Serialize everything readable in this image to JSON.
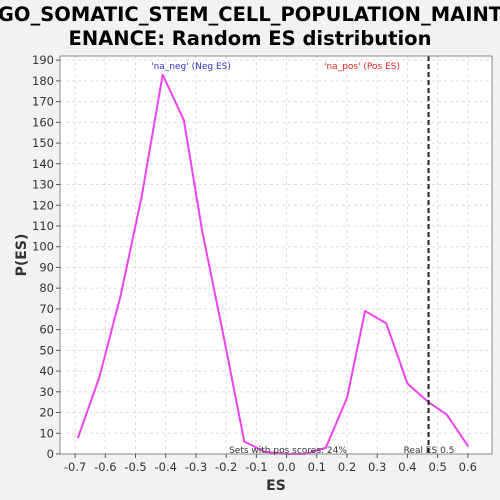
{
  "chart_data": {
    "type": "line",
    "title_lines": [
      "GO_SOMATIC_STEM_CELL_POPULATION_MAINT",
      "ENANCE: Random ES distribution"
    ],
    "xlabel": "ES",
    "ylabel": "P(ES)",
    "xlim": [
      -0.75,
      0.68
    ],
    "ylim": [
      0,
      192
    ],
    "x_ticks": [
      -0.7,
      -0.6,
      -0.5,
      -0.4,
      -0.3,
      -0.2,
      -0.1,
      0.0,
      0.1,
      0.2,
      0.3,
      0.4,
      0.5,
      0.6
    ],
    "x_tick_labels": [
      "-0.7",
      "-0.6",
      "-0.5",
      "-0.4",
      "-0.3",
      "-0.2",
      "-0.1",
      "0.0",
      "0.1",
      "0.2",
      "0.3",
      "0.4",
      "0.5",
      "0.6"
    ],
    "y_ticks": [
      0,
      10,
      20,
      30,
      40,
      50,
      60,
      70,
      80,
      90,
      100,
      110,
      120,
      130,
      140,
      150,
      160,
      170,
      180,
      190
    ],
    "y_tick_labels": [
      "0",
      "10",
      "20",
      "30",
      "40",
      "50",
      "60",
      "70",
      "80",
      "90",
      "100",
      "110",
      "120",
      "130",
      "140",
      "150",
      "160",
      "170",
      "180",
      "190"
    ],
    "grid": true,
    "series": [
      {
        "color": "#ee44ee",
        "x": [
          -0.69,
          -0.62,
          -0.55,
          -0.48,
          -0.41,
          -0.34,
          -0.28,
          -0.21,
          -0.14,
          -0.07,
          0.0,
          0.06,
          0.13,
          0.2,
          0.26,
          0.33,
          0.4,
          0.47,
          0.53,
          0.6
        ],
        "y": [
          8,
          37,
          76,
          124,
          183,
          161,
          108,
          58,
          6,
          1,
          0,
          0,
          3,
          27,
          69,
          63,
          34,
          25,
          19,
          4
        ]
      }
    ],
    "real_es": {
      "x": 0.47,
      "label": "Real ES 0.5",
      "color": "#222222"
    },
    "annotations": {
      "neg_label": "'na_neg' (Neg ES)",
      "neg_color": "#3333cc",
      "pos_label": "'na_pos' (Pos ES)",
      "pos_color": "#ee2222",
      "pos_scores": "Sets with pos scores: 24%",
      "text_color": "#333333"
    },
    "plot_background": "#ffffff",
    "grid_color": "#dddddd"
  }
}
